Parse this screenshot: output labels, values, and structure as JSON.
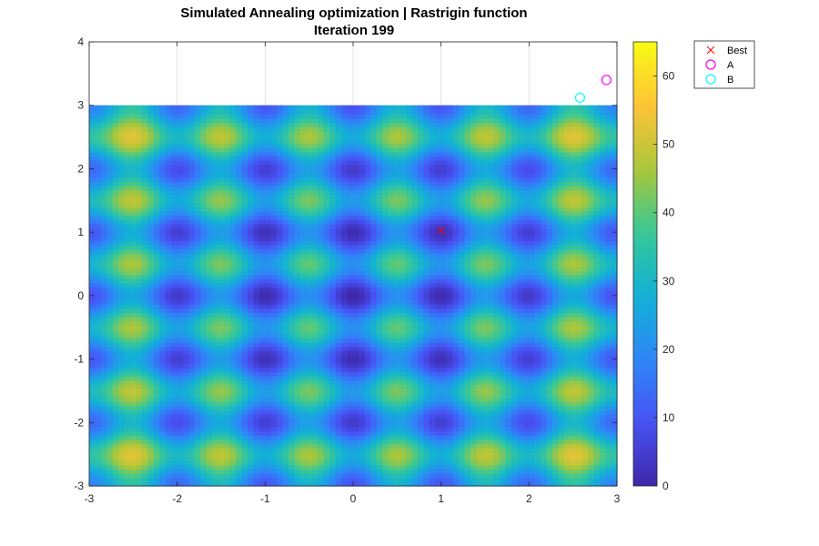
{
  "chart_data": {
    "type": "heatmap",
    "title": "Simulated Annealing optimization | Rastrigin function",
    "subtitle": "Iteration 199",
    "function": "Rastrigin",
    "surface_domain": {
      "x": [
        -3,
        3
      ],
      "y": [
        -3,
        3
      ]
    },
    "xlim": [
      -3,
      3
    ],
    "ylim": [
      -3,
      4
    ],
    "x_ticks": [
      -3,
      -2,
      -1,
      0,
      1,
      2,
      3
    ],
    "y_ticks": [
      -3,
      -2,
      -1,
      0,
      1,
      2,
      3,
      4
    ],
    "grid": true,
    "colorbar": {
      "colormap": "parula",
      "range": [
        0,
        65
      ],
      "ticks": [
        0,
        10,
        20,
        30,
        40,
        50,
        60
      ]
    },
    "legend_position": "outside-top-right",
    "series": [
      {
        "name": "Best",
        "marker": "x",
        "color": "#ff0000",
        "points": [
          [
            1.0,
            1.03
          ]
        ]
      },
      {
        "name": "A",
        "marker": "o",
        "color": "#ff00ff",
        "points": [
          [
            2.88,
            3.4
          ]
        ]
      },
      {
        "name": "B",
        "marker": "o",
        "color": "#00ffff",
        "points": [
          [
            2.58,
            3.12
          ]
        ]
      }
    ]
  }
}
